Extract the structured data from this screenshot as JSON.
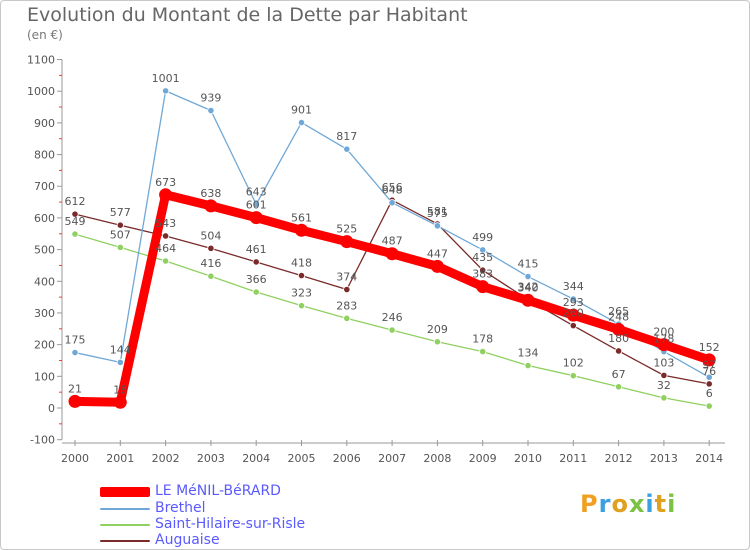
{
  "header": {
    "title": "Evolution du Montant de la Dette par Habitant",
    "subtitle": "(en €)"
  },
  "logo": {
    "text": "Proxiti",
    "colors": [
      "#f0a020",
      "#3aa0e0",
      "#e0a020",
      "#7cc242",
      "#3aa0e0",
      "#e0a020",
      "#7cc242"
    ]
  },
  "chart_data": {
    "type": "line",
    "x": [
      "2000",
      "2001",
      "2002",
      "2003",
      "2004",
      "2005",
      "2006",
      "2007",
      "2008",
      "2009",
      "2010",
      "2011",
      "2012",
      "2013",
      "2014"
    ],
    "ylim": [
      -100,
      1100
    ],
    "yticks": [
      "-100",
      "0",
      "100",
      "200",
      "300",
      "400",
      "500",
      "600",
      "700",
      "800",
      "900",
      "1000",
      "1100"
    ],
    "grid": false,
    "legend_position": "bottom-left",
    "series": [
      {
        "name": "LE MéNIL-BéRARD",
        "color": "#ff0000",
        "values": [
          21,
          18,
          673,
          638,
          601,
          561,
          525,
          487,
          447,
          383,
          340,
          293,
          248,
          200,
          152
        ],
        "labels": [
          "21",
          "18",
          "673",
          "638",
          "601",
          "561",
          "525",
          "487",
          "447",
          "383",
          "340",
          "293",
          "248",
          "200",
          "152"
        ]
      },
      {
        "name": "Brethel",
        "color": "#6fa8d6",
        "values": [
          175,
          144,
          1001,
          939,
          643,
          901,
          817,
          648,
          575,
          499,
          415,
          344,
          265,
          178,
          97
        ],
        "labels": [
          "175",
          "144",
          "1001",
          "939",
          "643",
          "901",
          "817",
          "648",
          "575",
          "499",
          "415",
          "344",
          "265",
          "178",
          "97"
        ]
      },
      {
        "name": "Saint-Hilaire-sur-Risle",
        "color": "#90d060",
        "values": [
          549,
          507,
          464,
          416,
          366,
          323,
          283,
          246,
          209,
          178,
          134,
          102,
          67,
          32,
          6
        ],
        "labels": [
          "549",
          "507",
          "464",
          "416",
          "366",
          "323",
          "283",
          "246",
          "209",
          "178",
          "134",
          "102",
          "67",
          "32",
          "6"
        ]
      },
      {
        "name": "Auguaise",
        "color": "#7a2a2a",
        "values": [
          612,
          577,
          543,
          504,
          461,
          418,
          374,
          656,
          581,
          435,
          342,
          260,
          180,
          103,
          76
        ],
        "labels": [
          "612",
          "577",
          "543",
          "504",
          "461",
          "418",
          "374",
          "656",
          "581",
          "435",
          "342",
          "260",
          "180",
          "103",
          "76"
        ]
      }
    ]
  }
}
